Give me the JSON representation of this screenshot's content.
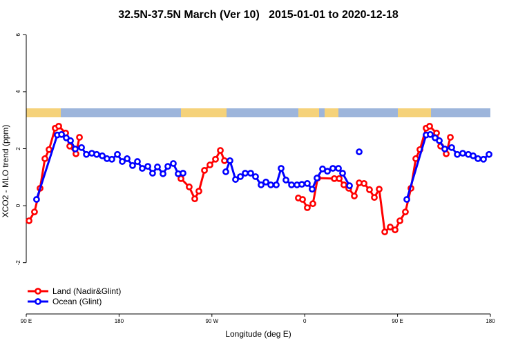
{
  "chart_data": {
    "type": "line",
    "title": "32.5N-37.5N March (Ver 10)   2015-01-01 to 2020-12-18",
    "xlabel": "Longitude (deg E)",
    "ylabel": "XCO2 - MLO trend (ppm)",
    "xlim": [
      90,
      540
    ],
    "xticks": [
      {
        "value": 90,
        "label": "90 E"
      },
      {
        "value": 180,
        "label": "180"
      },
      {
        "value": 270,
        "label": "90 W"
      },
      {
        "value": 360,
        "label": "0"
      },
      {
        "value": 450,
        "label": "90 E"
      },
      {
        "value": 540,
        "label": "180"
      }
    ],
    "ylim": [
      -3.8,
      6.25
    ],
    "yticks": [
      -2,
      0,
      2,
      4,
      6
    ],
    "legend": "bottomleft",
    "series": [
      {
        "name": "Land (Nadir&Glint)",
        "color": "#ff0000",
        "x": [
          92.7,
          98.0,
          103.4,
          108.1,
          112.1,
          118.1,
          121.5,
          128.2,
          132.2,
          138.2,
          141.6,
          null,
          240.0,
          248.0,
          253.4,
          257.4,
          262.8,
          268.1,
          273.5,
          278.2,
          282.2,
          null,
          353.8,
          357.9,
          362.5,
          367.9,
          372.6,
          388.7,
          393.4,
          398.0,
          402.7,
          408.1,
          412.8,
          417.5,
          422.8,
          427.5,
          432.2,
          437.6,
          442.9,
          447.6,
          452.3,
          457.6,
          463.0,
          467.7,
          471.7,
          477.7,
          481.1,
          487.8,
          491.8,
          497.2,
          501.2
        ],
        "values": [
          -0.53,
          -0.22,
          0.61,
          1.65,
          1.97,
          2.72,
          2.79,
          2.55,
          2.09,
          1.82,
          2.4,
          null,
          0.95,
          0.66,
          0.24,
          0.51,
          1.24,
          1.43,
          1.63,
          1.94,
          1.58,
          null,
          0.27,
          0.22,
          -0.07,
          0.07,
          0.97,
          0.95,
          0.95,
          0.73,
          0.61,
          0.34,
          0.8,
          0.78,
          0.56,
          0.29,
          0.58,
          -0.92,
          -0.75,
          -0.85,
          -0.53,
          -0.22,
          0.61,
          1.65,
          1.97,
          2.72,
          2.79,
          2.55,
          2.09,
          1.82,
          2.4
        ]
      },
      {
        "name": "Ocean (Glint)",
        "color": "#0000ff",
        "x": [
          100.0,
          120.1,
          124.2,
          128.8,
          132.9,
          137.5,
          143.6,
          148.3,
          153.6,
          158.3,
          163.7,
          168.3,
          173.0,
          178.4,
          183.1,
          187.8,
          193.1,
          197.8,
          202.5,
          207.9,
          212.5,
          217.2,
          222.6,
          227.3,
          232.6,
          237.3,
          242.0,
          null,
          283.5,
          287.5,
          292.9,
          297.6,
          302.3,
          307.6,
          312.3,
          317.7,
          322.4,
          327.1,
          332.4,
          337.1,
          341.8,
          347.2,
          352.5,
          357.2,
          362.5,
          367.2,
          371.9,
          377.3,
          382.0,
          387.3,
          392.7,
          396.7,
          403.4,
          null,
          412.8,
          null,
          459.0,
          477.7,
          481.7,
          486.4,
          490.5,
          495.8,
          502.5,
          507.9,
          513.2,
          518.6,
          523.3,
          528.0,
          533.3,
          538.7
        ],
        "values": [
          0.22,
          2.48,
          2.5,
          2.38,
          2.28,
          1.99,
          2.04,
          1.8,
          1.84,
          1.8,
          1.75,
          1.65,
          1.63,
          1.8,
          1.55,
          1.65,
          1.41,
          1.55,
          1.31,
          1.38,
          1.14,
          1.36,
          1.12,
          1.38,
          1.48,
          1.12,
          1.14,
          null,
          1.19,
          1.58,
          0.92,
          1.02,
          1.14,
          1.14,
          1.02,
          0.73,
          0.83,
          0.73,
          0.73,
          1.31,
          0.9,
          0.73,
          0.73,
          0.75,
          0.78,
          0.58,
          0.97,
          1.29,
          1.21,
          1.31,
          1.31,
          1.14,
          0.7,
          null,
          1.89,
          null,
          0.22,
          2.48,
          2.5,
          2.38,
          2.28,
          1.99,
          2.04,
          1.8,
          1.84,
          1.8,
          1.75,
          1.65,
          1.63,
          1.8
        ]
      }
    ]
  }
}
